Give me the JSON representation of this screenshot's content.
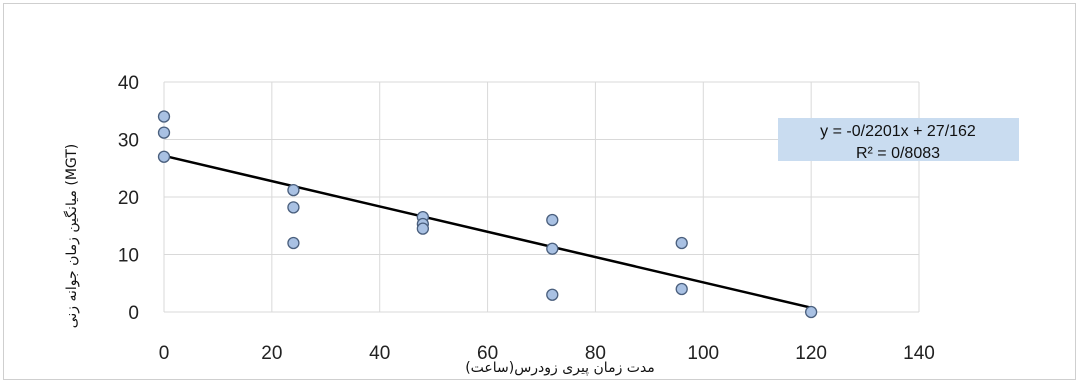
{
  "chart_data": {
    "type": "scatter",
    "xlabel": "مدت زمان پیری زودرس(ساعت)",
    "ylabel": "میانگین زمان جوانه زنی (MGT)",
    "xlim": [
      0,
      140
    ],
    "ylim": [
      0,
      40
    ],
    "x_ticks": [
      "0",
      "20",
      "40",
      "60",
      "80",
      "100",
      "120",
      "140"
    ],
    "y_ticks": [
      "0",
      "10",
      "20",
      "30",
      "40"
    ],
    "grid": true,
    "series": [
      {
        "points": [
          {
            "x": 0,
            "y": 34
          },
          {
            "x": 0,
            "y": 31.2
          },
          {
            "x": 0,
            "y": 27
          },
          {
            "x": 24,
            "y": 21.2
          },
          {
            "x": 24,
            "y": 18.2
          },
          {
            "x": 24,
            "y": 12
          },
          {
            "x": 48,
            "y": 16.5
          },
          {
            "x": 48,
            "y": 15.3
          },
          {
            "x": 48,
            "y": 14.5
          },
          {
            "x": 72,
            "y": 16
          },
          {
            "x": 72,
            "y": 11
          },
          {
            "x": 72,
            "y": 3
          },
          {
            "x": 96,
            "y": 12
          },
          {
            "x": 96,
            "y": 4
          },
          {
            "x": 120,
            "y": 0
          }
        ]
      }
    ],
    "trendline": {
      "slope": -0.2201,
      "intercept": 27.162,
      "equation": "y = -0/2201x + 27/162",
      "r2": "R² = 0/8083"
    },
    "colors": {
      "marker_fill": "#a9c1e3",
      "marker_stroke": "#4a5f7d",
      "trendline": "#000000",
      "grid": "#d9d9d9",
      "label_box": "#c9dcf0"
    }
  }
}
